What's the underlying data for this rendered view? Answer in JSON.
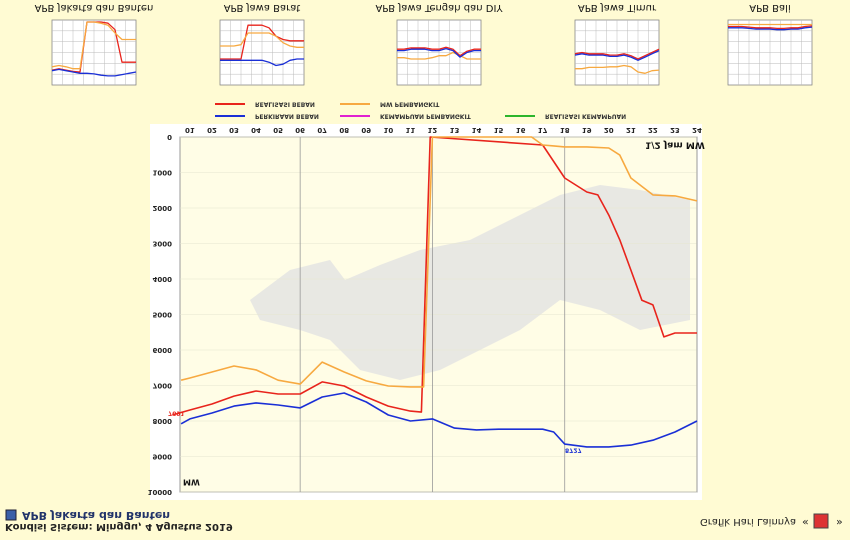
{
  "header": {
    "title": "APB Jakarta dan Banten",
    "status": "Kondisi Sistem: Minggu, 4 Agustus 2019"
  },
  "nav": {
    "label": "Grafik Hari Lainnya",
    "prev": "«",
    "next": "»"
  },
  "chart_data": [
    {
      "type": "line",
      "xlim": [
        0.55,
        24
      ],
      "ylim": [
        0,
        10000
      ],
      "xticks": [
        {
          "value": 1,
          "label": "01"
        },
        {
          "value": 2,
          "label": "02"
        },
        {
          "value": 3,
          "label": "03"
        },
        {
          "value": 4,
          "label": "04"
        },
        {
          "value": 5,
          "label": "05"
        },
        {
          "value": 6,
          "label": "06"
        },
        {
          "value": 7,
          "label": "07"
        },
        {
          "value": 8,
          "label": "08"
        },
        {
          "value": 9,
          "label": "09"
        },
        10,
        11,
        12,
        13,
        14,
        15,
        16,
        17,
        18,
        19,
        20,
        21,
        22,
        23,
        24
      ],
      "yticks": [
        0,
        1000,
        2000,
        3000,
        4000,
        5000,
        6000,
        7000,
        8000,
        9000,
        10000
      ],
      "grid": true,
      "annotations": [
        "1/2 Jam MW",
        "MW",
        "7691",
        "8727"
      ],
      "series": [
        {
          "name": "REALISASI BEBAN",
          "color": "#e8241c",
          "x": [
            0.2,
            1,
            2,
            3,
            4,
            5,
            6,
            7,
            8,
            9,
            10,
            11,
            11.5,
            11.9,
            17,
            18,
            19,
            19.5,
            20,
            20.5,
            21,
            21.5,
            22,
            22.5,
            23,
            24
          ],
          "values": [
            7830,
            7690,
            7520,
            7300,
            7155,
            7240,
            7240,
            6900,
            7015,
            7325,
            7580,
            7720,
            7750,
            0,
            225,
            1155,
            1550,
            1630,
            2200,
            2900,
            3750,
            4600,
            4730,
            5630,
            5520,
            5520
          ]
        },
        {
          "name": "MW PEMBANGKIT",
          "color": "#f7a940",
          "x": [
            0.6,
            1,
            2,
            3,
            4,
            5,
            6,
            7,
            8,
            9,
            10,
            11,
            11.6,
            12,
            16.5,
            17,
            17.5,
            18,
            19,
            20,
            20.5,
            21,
            22,
            23,
            24
          ],
          "values": [
            6850,
            6790,
            6620,
            6450,
            6560,
            6850,
            6960,
            6340,
            6620,
            6870,
            7015,
            7040,
            7040,
            0,
            0,
            225,
            250,
            280,
            280,
            310,
            510,
            1155,
            1630,
            1660,
            1800
          ]
        },
        {
          "name": "PERKIRAAN BEBAN",
          "color": "#1a2fd6",
          "x": [
            0.6,
            1,
            2,
            3,
            4,
            5,
            6,
            7,
            8,
            9,
            10,
            11,
            12,
            13,
            14,
            15,
            16,
            17,
            17.5,
            18,
            19,
            20,
            21,
            22,
            23,
            24
          ],
          "values": [
            8080,
            7940,
            7775,
            7580,
            7490,
            7550,
            7630,
            7325,
            7210,
            7465,
            7830,
            8000,
            7940,
            8200,
            8250,
            8230,
            8230,
            8230,
            8310,
            8650,
            8730,
            8730,
            8680,
            8540,
            8310,
            8000
          ]
        },
        {
          "name": "KEMAMPUAN PEMBANGKIT",
          "color": "#e020d0",
          "x": [],
          "values": []
        },
        {
          "name": "REALISASI KEMAMPUAN",
          "color": "#2cb52c",
          "x": [],
          "values": []
        }
      ]
    },
    {
      "type": "line",
      "title": "APB Jakarta dan Banten",
      "ylim": [
        0,
        100
      ],
      "series": [
        {
          "color": "#e8241c",
          "values": [
            77,
            75,
            77,
            79,
            80,
            3,
            3,
            3,
            5,
            15,
            65,
            65,
            65
          ]
        },
        {
          "color": "#f7a940",
          "values": [
            72,
            70,
            72,
            75,
            75,
            3,
            3,
            5,
            8,
            20,
            30,
            30,
            30
          ]
        },
        {
          "color": "#1a2fd6",
          "values": [
            78,
            76,
            78,
            80,
            82,
            82,
            83,
            85,
            86,
            86,
            84,
            82,
            80
          ]
        }
      ]
    },
    {
      "type": "line",
      "title": "APB Jawa Barat",
      "ylim": [
        0,
        100
      ],
      "series": [
        {
          "color": "#e8241c",
          "values": [
            60,
            60,
            60,
            60,
            8,
            8,
            8,
            12,
            25,
            30,
            32,
            32,
            32
          ]
        },
        {
          "color": "#f7a940",
          "values": [
            40,
            40,
            40,
            38,
            20,
            20,
            20,
            20,
            25,
            35,
            40,
            42,
            42
          ]
        },
        {
          "color": "#1a2fd6",
          "values": [
            62,
            62,
            62,
            62,
            62,
            62,
            62,
            65,
            70,
            68,
            62,
            60,
            60
          ]
        }
      ]
    },
    {
      "type": "line",
      "title": "APB Jawa Tengah dan DIY",
      "ylim": [
        0,
        100
      ],
      "series": [
        {
          "color": "#f7a940",
          "values": [
            58,
            58,
            60,
            60,
            60,
            58,
            55,
            55,
            50,
            55,
            60,
            60,
            60
          ]
        },
        {
          "color": "#e8241c",
          "values": [
            45,
            45,
            43,
            43,
            43,
            45,
            45,
            42,
            45,
            55,
            48,
            45,
            45
          ]
        },
        {
          "color": "#1a2fd6",
          "values": [
            47,
            47,
            45,
            45,
            45,
            47,
            47,
            44,
            47,
            57,
            50,
            47,
            47
          ]
        }
      ]
    },
    {
      "type": "line",
      "title": "APB Jawa Timur",
      "ylim": [
        0,
        100
      ],
      "series": [
        {
          "color": "#f7a940",
          "values": [
            75,
            75,
            73,
            73,
            73,
            72,
            72,
            70,
            72,
            80,
            82,
            78,
            77
          ]
        },
        {
          "color": "#e8241c",
          "values": [
            52,
            50,
            52,
            52,
            52,
            54,
            54,
            52,
            55,
            60,
            55,
            50,
            45
          ]
        },
        {
          "color": "#1a2fd6",
          "values": [
            54,
            52,
            54,
            54,
            54,
            56,
            56,
            54,
            57,
            62,
            57,
            52,
            47
          ]
        }
      ]
    },
    {
      "type": "line",
      "title": "APB Bali",
      "ylim": [
        0,
        100
      ],
      "series": [
        {
          "color": "#f7a940",
          "values": [
            7,
            7,
            7,
            7,
            7,
            7,
            7,
            7,
            7,
            7,
            7,
            7,
            7
          ]
        },
        {
          "color": "#e8241c",
          "values": [
            10,
            10,
            10,
            11,
            12,
            12,
            12,
            13,
            13,
            12,
            12,
            10,
            9
          ]
        },
        {
          "color": "#1a2fd6",
          "values": [
            12,
            12,
            12,
            13,
            14,
            14,
            14,
            15,
            15,
            14,
            14,
            12,
            11
          ]
        }
      ]
    }
  ]
}
